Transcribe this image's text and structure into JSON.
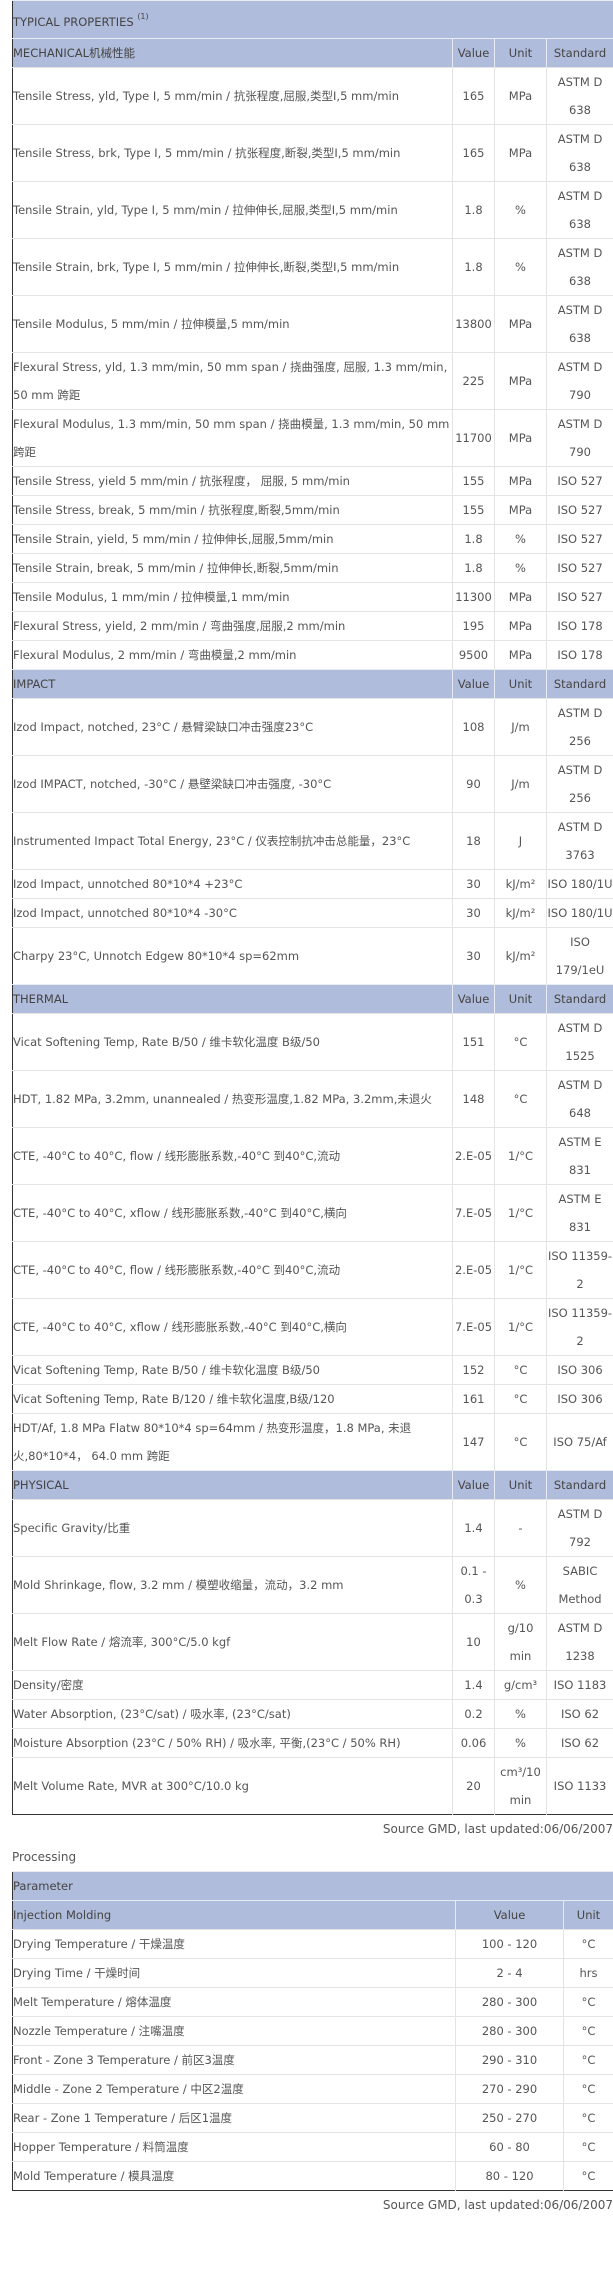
{
  "typical_title": "TYPICAL PROPERTIES",
  "typical_sup": "(1)",
  "col_value": "Value",
  "col_unit": "Unit",
  "col_standard": "Standard",
  "sections": [
    {
      "title": "MECHANICAL机械性能",
      "rows": [
        [
          "Tensile Stress, yld, Type I, 5 mm/min / 抗张程度,屈服,类型I,5 mm/min",
          "165",
          "MPa",
          "ASTM D 638"
        ],
        [
          "Tensile Stress, brk, Type I, 5 mm/min / 抗张程度,断裂,类型I,5 mm/min",
          "165",
          "MPa",
          "ASTM D 638"
        ],
        [
          "Tensile Strain, yld, Type I, 5 mm/min / 拉伸伸长,屈服,类型I,5 mm/min",
          "1.8",
          "%",
          "ASTM D 638"
        ],
        [
          "Tensile Strain, brk, Type I, 5 mm/min / 拉伸伸长,断裂,类型I,5 mm/min",
          "1.8",
          "%",
          "ASTM D 638"
        ],
        [
          "Tensile Modulus, 5 mm/min / 拉伸模量,5 mm/min",
          "13800",
          "MPa",
          "ASTM D 638"
        ],
        [
          "Flexural Stress, yld, 1.3 mm/min, 50 mm span / 挠曲强度, 屈服, 1.3 mm/min, 50 mm 跨距",
          "225",
          "MPa",
          "ASTM D 790"
        ],
        [
          "Flexural Modulus, 1.3 mm/min, 50 mm span / 挠曲模量, 1.3 mm/min, 50 mm 跨距",
          "11700",
          "MPa",
          "ASTM D 790"
        ],
        [
          "Tensile Stress, yield 5 mm/min / 抗张程度， 屈服, 5 mm/min",
          "155",
          "MPa",
          "ISO 527"
        ],
        [
          "Tensile Stress, break, 5 mm/min / 抗张程度,断裂,5mm/min",
          "155",
          "MPa",
          "ISO 527"
        ],
        [
          "Tensile Strain, yield, 5 mm/min / 拉伸伸长,屈服,5mm/min",
          "1.8",
          "%",
          "ISO 527"
        ],
        [
          "Tensile Strain, break, 5 mm/min / 拉伸伸长,断裂,5mm/min",
          "1.8",
          "%",
          "ISO 527"
        ],
        [
          "Tensile Modulus, 1 mm/min / 拉伸模量,1 mm/min",
          "11300",
          "MPa",
          "ISO 527"
        ],
        [
          "Flexural Stress, yield, 2 mm/min / 弯曲强度,屈服,2 mm/min",
          "195",
          "MPa",
          "ISO 178"
        ],
        [
          "Flexural Modulus, 2 mm/min / 弯曲模量,2 mm/min",
          "9500",
          "MPa",
          "ISO 178"
        ]
      ]
    },
    {
      "title": "IMPACT",
      "rows": [
        [
          "Izod Impact, notched, 23°C / 悬臂梁缺口冲击强度23°C",
          "108",
          "J/m",
          "ASTM D 256"
        ],
        [
          "Izod IMPACT, notched, -30°C / 悬壁梁缺口冲击强度, -30°C",
          "90",
          "J/m",
          "ASTM D 256"
        ],
        [
          "Instrumented Impact Total Energy, 23°C / 仪表控制抗冲击总能量，23°C",
          "18",
          "J",
          "ASTM D 3763"
        ],
        [
          "Izod Impact, unnotched 80*10*4 +23°C",
          "30",
          "kJ/m²",
          "ISO 180/1U"
        ],
        [
          "Izod Impact, unnotched 80*10*4 -30°C",
          "30",
          "kJ/m²",
          "ISO 180/1U"
        ],
        [
          "Charpy 23°C, Unnotch Edgew 80*10*4 sp=62mm",
          "30",
          "kJ/m²",
          "ISO 179/1eU"
        ]
      ]
    },
    {
      "title": "THERMAL",
      "rows": [
        [
          "Vicat Softening Temp, Rate B/50 / 维卡软化温度 B级/50",
          "151",
          "°C",
          "ASTM D 1525"
        ],
        [
          "HDT, 1.82 MPa, 3.2mm, unannealed / 热变形温度,1.82 MPa, 3.2mm,未退火",
          "148",
          "°C",
          "ASTM D 648"
        ],
        [
          "CTE, -40°C to 40°C, flow / 线形膨胀系数,-40°C 到40°C,流动",
          "2.E-05",
          "1/°C",
          "ASTM E 831"
        ],
        [
          "CTE, -40°C to 40°C, xflow / 线形膨胀系数,-40°C 到40°C,横向",
          "7.E-05",
          "1/°C",
          "ASTM E 831"
        ],
        [
          "CTE, -40°C to 40°C, flow / 线形膨胀系数,-40°C 到40°C,流动",
          "2.E-05",
          "1/°C",
          "ISO 11359-2"
        ],
        [
          "CTE, -40°C to 40°C, xflow / 线形膨胀系数,-40°C 到40°C,横向",
          "7.E-05",
          "1/°C",
          "ISO 11359-2"
        ],
        [
          "Vicat Softening Temp, Rate B/50 / 维卡软化温度 B级/50",
          "152",
          "°C",
          "ISO 306"
        ],
        [
          "Vicat Softening Temp, Rate B/120 / 维卡软化温度,B级/120",
          "161",
          "°C",
          "ISO 306"
        ],
        [
          "HDT/Af, 1.8 MPa Flatw 80*10*4 sp=64mm / 热变形温度，1.8 MPa, 未退火,80*10*4， 64.0 mm 跨距",
          "147",
          "°C",
          "ISO 75/Af"
        ]
      ]
    },
    {
      "title": "PHYSICAL",
      "rows": [
        [
          "Specific Gravity/比重",
          "1.4",
          "-",
          "ASTM D 792"
        ],
        [
          "Mold Shrinkage, flow, 3.2 mm / 模塑收缩量，流动，3.2 mm",
          "0.1 - 0.3",
          "%",
          "SABIC Method"
        ],
        [
          "Melt Flow Rate / 熔流率, 300°C/5.0 kgf",
          "10",
          "g/10 min",
          "ASTM D 1238"
        ],
        [
          "Density/密度",
          "1.4",
          "g/cm³",
          "ISO 1183"
        ],
        [
          "Water Absorption, (23°C/sat) / 吸水率, (23°C/sat)",
          "0.2",
          "%",
          "ISO 62"
        ],
        [
          "Moisture Absorption (23°C / 50% RH) / 吸水率, 平衡,(23°C / 50% RH)",
          "0.06",
          "%",
          "ISO 62"
        ],
        [
          "Melt Volume Rate, MVR at 300°C/10.0 kg",
          "20",
          "cm³/10 min",
          "ISO 1133"
        ]
      ]
    }
  ],
  "source_note": "Source GMD, last updated:06/06/2007",
  "processing": {
    "title": "Processing",
    "parameter_label": "Parameter",
    "group_label": "Injection Molding",
    "col_value": "Value",
    "col_unit": "Unit",
    "rows": [
      [
        "Drying Temperature / 干燥温度",
        "100 - 120",
        "°C"
      ],
      [
        "Drying Time / 干燥时间",
        "2 - 4",
        "hrs"
      ],
      [
        "Melt Temperature / 熔体温度",
        "280 - 300",
        "°C"
      ],
      [
        "Nozzle Temperature / 注嘴温度",
        "280 - 300",
        "°C"
      ],
      [
        "Front - Zone 3 Temperature / 前区3温度",
        "290 - 310",
        "°C"
      ],
      [
        "Middle - Zone 2 Temperature / 中区2温度",
        "270 - 290",
        "°C"
      ],
      [
        "Rear - Zone 1 Temperature / 后区1温度",
        "250 - 270",
        "°C"
      ],
      [
        "Hopper Temperature / 料筒温度",
        "60 - 80",
        "°C"
      ],
      [
        "Mold Temperature / 模具温度",
        "80 - 120",
        "°C"
      ]
    ],
    "source_note": "Source GMD, last updated:06/06/2007"
  },
  "colors": {
    "header_bg": "#b0bcdb",
    "text": "#555555",
    "border": "#333333"
  }
}
